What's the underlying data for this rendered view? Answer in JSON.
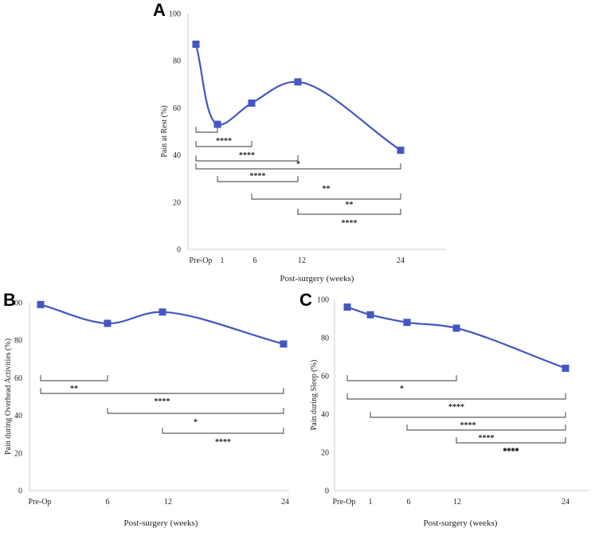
{
  "colors": {
    "series": "#4456c0",
    "axis": "#cfcfcf",
    "bracket": "#333333"
  },
  "chart_data": [
    {
      "type": "line",
      "panel": "A",
      "categories": [
        "Pre-Op",
        "1",
        "6",
        "12",
        "24"
      ],
      "x": [
        0,
        1,
        6,
        12,
        24
      ],
      "values": [
        87,
        53,
        62,
        71,
        42
      ],
      "xlabel": "Post-surgery (weeks)",
      "ylabel": "Pain at Rest (%)",
      "ylim": [
        0,
        100
      ],
      "yticks": [
        0,
        20,
        40,
        60,
        80,
        100
      ],
      "brackets": [
        {
          "from": 0,
          "to": 1,
          "label": ""
        },
        {
          "from": 0,
          "to": 2,
          "label": "****"
        },
        {
          "from": 0,
          "to": 3,
          "label": "****"
        },
        {
          "from": 0,
          "to": 4,
          "label": "*"
        },
        {
          "from": 1,
          "to": 3,
          "label": "****"
        },
        {
          "from": 2,
          "to": 4,
          "label": "**"
        },
        {
          "from": 3,
          "to": 4,
          "label": "**"
        },
        {
          "from": 3,
          "to": 4,
          "label": "****"
        }
      ]
    },
    {
      "type": "line",
      "panel": "B",
      "categories": [
        "Pre-Op",
        "6",
        "12",
        "24"
      ],
      "x": [
        0,
        6,
        12,
        24
      ],
      "values": [
        99,
        89,
        95,
        78
      ],
      "xlabel": "Post-surgery (weeks)",
      "ylabel": "Pain during Overhead Activities (%)",
      "ylim": [
        0,
        100
      ],
      "yticks": [
        0,
        20,
        40,
        60,
        80,
        100
      ],
      "brackets": [
        {
          "from": 0,
          "to": 1,
          "label": "**"
        },
        {
          "from": 0,
          "to": 3,
          "label": "****"
        },
        {
          "from": 1,
          "to": 3,
          "label": "*"
        },
        {
          "from": 2,
          "to": 3,
          "label": "****"
        }
      ]
    },
    {
      "type": "line",
      "panel": "C",
      "categories": [
        "Pre-Op",
        "1",
        "6",
        "12",
        "24"
      ],
      "x": [
        0,
        1,
        6,
        12,
        24
      ],
      "values": [
        96,
        92,
        88,
        85,
        64
      ],
      "xlabel": "Post-surgery (weeks)",
      "ylabel": "Pain during Sleep (%)",
      "ylim": [
        0,
        100
      ],
      "yticks": [
        0,
        20,
        40,
        60,
        80,
        100
      ],
      "brackets": [
        {
          "from": 0,
          "to": 3,
          "label": "*"
        },
        {
          "from": 0,
          "to": 4,
          "label": "****"
        },
        {
          "from": 1,
          "to": 4,
          "label": "****"
        },
        {
          "from": 2,
          "to": 4,
          "label": "****"
        },
        {
          "from": 3,
          "to": 4,
          "label": "****"
        },
        {
          "from": 3,
          "to": 4,
          "label": "****"
        }
      ]
    }
  ]
}
